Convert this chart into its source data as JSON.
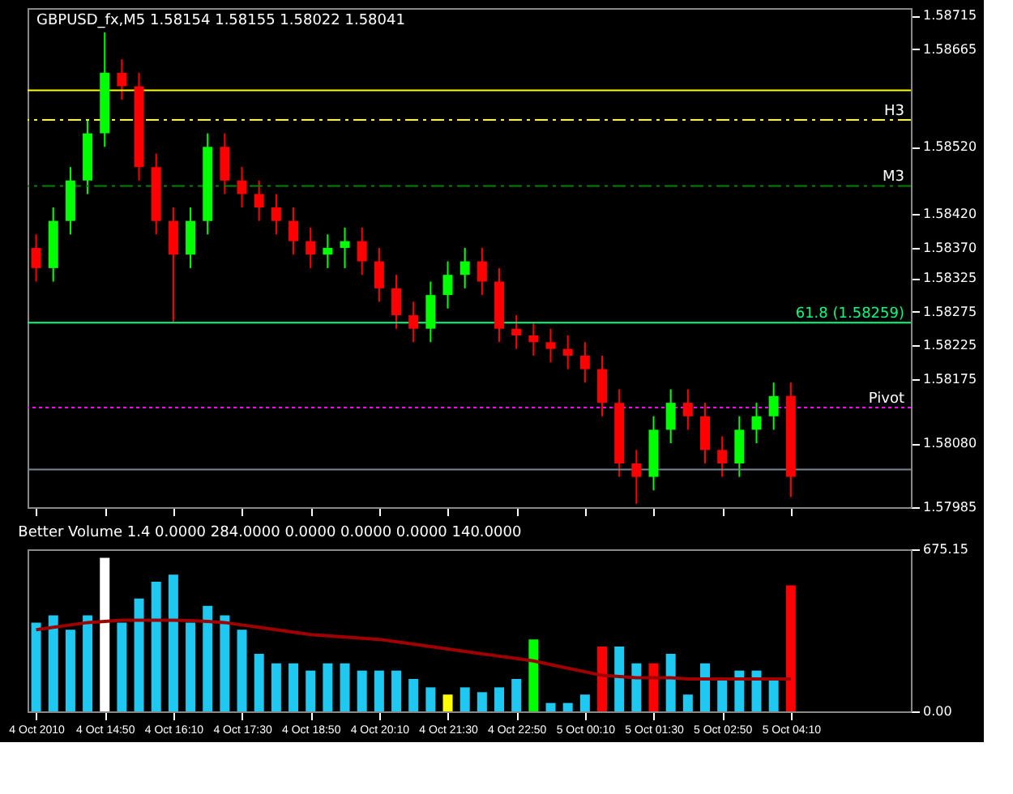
{
  "chart_data": [
    {
      "type": "candlestick",
      "title": "GBPUSD_fx,M5  1.58154 1.58155 1.58022 1.58041",
      "x": [
        "2010-10-04T13:30",
        "2010-10-04T13:50",
        "2010-10-04T14:10",
        "2010-10-04T14:30",
        "2010-10-04T14:50",
        "2010-10-04T15:10",
        "2010-10-04T15:30",
        "2010-10-04T15:50",
        "2010-10-04T16:10",
        "2010-10-04T16:30",
        "2010-10-04T16:50",
        "2010-10-04T17:10",
        "2010-10-04T17:30",
        "2010-10-04T17:50",
        "2010-10-04T18:10",
        "2010-10-04T18:30",
        "2010-10-04T18:50",
        "2010-10-04T19:10",
        "2010-10-04T19:30",
        "2010-10-04T19:50",
        "2010-10-04T20:10",
        "2010-10-04T20:30",
        "2010-10-04T20:50",
        "2010-10-04T21:10",
        "2010-10-04T21:30",
        "2010-10-04T21:50",
        "2010-10-04T22:10",
        "2010-10-04T22:30",
        "2010-10-04T22:50",
        "2010-10-04T23:10",
        "2010-10-04T23:30",
        "2010-10-04T23:50",
        "2010-10-05T00:10",
        "2010-10-05T00:30",
        "2010-10-05T00:50",
        "2010-10-05T01:10",
        "2010-10-05T01:30",
        "2010-10-05T01:50",
        "2010-10-05T02:10",
        "2010-10-05T02:30",
        "2010-10-05T02:50",
        "2010-10-05T03:10",
        "2010-10-05T03:30",
        "2010-10-05T03:50",
        "2010-10-05T04:10"
      ],
      "ohlc": [
        [
          1.5837,
          1.5839,
          1.5832,
          1.5834
        ],
        [
          1.5834,
          1.5843,
          1.5832,
          1.5841
        ],
        [
          1.5841,
          1.5849,
          1.5839,
          1.5847
        ],
        [
          1.5847,
          1.5856,
          1.5845,
          1.5854
        ],
        [
          1.5854,
          1.5869,
          1.5852,
          1.5863
        ],
        [
          1.5863,
          1.5865,
          1.5859,
          1.5861
        ],
        [
          1.5861,
          1.5863,
          1.5847,
          1.5849
        ],
        [
          1.5849,
          1.5851,
          1.5839,
          1.5841
        ],
        [
          1.5841,
          1.5843,
          1.5826,
          1.5836
        ],
        [
          1.5836,
          1.5843,
          1.5834,
          1.5841
        ],
        [
          1.5841,
          1.5854,
          1.5839,
          1.5852
        ],
        [
          1.5852,
          1.5854,
          1.5845,
          1.5847
        ],
        [
          1.5847,
          1.5849,
          1.5843,
          1.5845
        ],
        [
          1.5845,
          1.5847,
          1.5841,
          1.5843
        ],
        [
          1.5843,
          1.5845,
          1.5839,
          1.5841
        ],
        [
          1.5841,
          1.5843,
          1.5836,
          1.5838
        ],
        [
          1.5838,
          1.584,
          1.5834,
          1.5836
        ],
        [
          1.5836,
          1.5839,
          1.5834,
          1.5837
        ],
        [
          1.5837,
          1.584,
          1.5834,
          1.5838
        ],
        [
          1.5838,
          1.584,
          1.5833,
          1.5835
        ],
        [
          1.5835,
          1.5837,
          1.5829,
          1.5831
        ],
        [
          1.5831,
          1.5833,
          1.5825,
          1.5827
        ],
        [
          1.5827,
          1.5829,
          1.5823,
          1.5825
        ],
        [
          1.5825,
          1.5832,
          1.5823,
          1.583
        ],
        [
          1.583,
          1.5835,
          1.5828,
          1.5833
        ],
        [
          1.5833,
          1.5837,
          1.5831,
          1.5835
        ],
        [
          1.5835,
          1.5837,
          1.583,
          1.5832
        ],
        [
          1.5832,
          1.5834,
          1.5823,
          1.5825
        ],
        [
          1.5825,
          1.5827,
          1.5822,
          1.5824
        ],
        [
          1.5824,
          1.5826,
          1.5821,
          1.5823
        ],
        [
          1.5823,
          1.5825,
          1.582,
          1.5822
        ],
        [
          1.5822,
          1.5824,
          1.5819,
          1.5821
        ],
        [
          1.5821,
          1.5823,
          1.5817,
          1.5819
        ],
        [
          1.5819,
          1.5821,
          1.5812,
          1.5814
        ],
        [
          1.5814,
          1.5816,
          1.5803,
          1.5805
        ],
        [
          1.5805,
          1.5807,
          1.5799,
          1.5803
        ],
        [
          1.5803,
          1.5812,
          1.5801,
          1.581
        ],
        [
          1.581,
          1.5816,
          1.5808,
          1.5814
        ],
        [
          1.5814,
          1.5816,
          1.581,
          1.5812
        ],
        [
          1.5812,
          1.5814,
          1.5805,
          1.5807
        ],
        [
          1.5807,
          1.5809,
          1.5803,
          1.5805
        ],
        [
          1.5805,
          1.5812,
          1.5803,
          1.581
        ],
        [
          1.581,
          1.5814,
          1.5808,
          1.5812
        ],
        [
          1.5812,
          1.5817,
          1.581,
          1.5815
        ],
        [
          1.5815,
          1.5817,
          1.58,
          1.5803
        ]
      ],
      "colors": [
        "#ff0000",
        "#00ff00",
        "#00ff00",
        "#00ff00",
        "#00ff00",
        "#ff0000",
        "#ff0000",
        "#ff0000",
        "#ff0000",
        "#00ff00",
        "#00ff00",
        "#ff0000",
        "#ff0000",
        "#ff0000",
        "#ff0000",
        "#ff0000",
        "#ff0000",
        "#00ff00",
        "#00ff00",
        "#ff0000",
        "#ff0000",
        "#ff0000",
        "#ff0000",
        "#00ff00",
        "#00ff00",
        "#00ff00",
        "#ff0000",
        "#ff0000",
        "#ff0000",
        "#ff0000",
        "#ff0000",
        "#ff0000",
        "#ff0000",
        "#ff0000",
        "#ff0000",
        "#ff0000",
        "#00ff00",
        "#00ff00",
        "#ff0000",
        "#ff0000",
        "#ff0000",
        "#00ff00",
        "#00ff00",
        "#00ff00",
        "#ff0000"
      ],
      "xlim": [
        "2010-10-04T13:20",
        "2010-10-05T06:30"
      ],
      "ylim": [
        1.57985,
        1.58726
      ],
      "yticks": [
        1.57985,
        {
          "value": 1.5808,
          "label": "1.58080"
        },
        1.58175,
        1.58225,
        1.58275,
        1.58325,
        {
          "value": 1.5837,
          "label": "1.58370"
        },
        {
          "value": 1.5842,
          "label": "1.58420"
        },
        {
          "value": 1.5852,
          "label": "1.58520"
        },
        1.58665,
        1.58715
      ],
      "tick_labels": "y",
      "xticks": [
        {
          "value": "2010-10-04T13:30",
          "label": null
        },
        {
          "value": "2010-10-04T14:50",
          "label": null
        },
        {
          "value": "2010-10-04T16:10",
          "label": null
        },
        {
          "value": "2010-10-04T17:30",
          "label": null
        },
        {
          "value": "2010-10-04T18:50",
          "label": null
        },
        {
          "value": "2010-10-04T20:10",
          "label": null
        },
        {
          "value": "2010-10-04T21:30",
          "label": null
        },
        {
          "value": "2010-10-04T22:50",
          "label": null
        },
        {
          "value": "2010-10-05T00:10",
          "label": null
        },
        {
          "value": "2010-10-05T01:30",
          "label": null
        },
        {
          "value": "2010-10-05T02:50",
          "label": null
        },
        {
          "value": "2010-10-05T04:10",
          "label": null
        }
      ],
      "grid": false,
      "ref_lines": [
        {
          "axis": "y",
          "value": 1.58604,
          "label": null,
          "color": "#ffff00",
          "line_style": "solid"
        },
        {
          "axis": "y",
          "value": 1.5856,
          "label": "H3",
          "color": "#ffff00",
          "line_style": "dashed"
        },
        {
          "axis": "y",
          "value": 1.58462,
          "label": "M3",
          "color": "#008000",
          "line_style": "dashed"
        },
        {
          "axis": "y",
          "value": 1.58259,
          "label": "61.8 (1.58259)",
          "color": "#00ff7f",
          "line_style": "solid"
        },
        {
          "axis": "y",
          "value": 1.58133,
          "label": "Pivot",
          "color": "#ff00ff",
          "line_style": "dotted"
        },
        {
          "axis": "y",
          "value": 1.58041,
          "label": null,
          "color": "#778899",
          "line_style": "solid"
        }
      ]
    },
    {
      "type": "bar",
      "title": "Better Volume 1.4 0.0000 284.0000 0.0000 0.0000 0.0000 140.0000",
      "x": [
        "2010-10-04T13:30",
        "2010-10-04T13:50",
        "2010-10-04T14:10",
        "2010-10-04T14:30",
        "2010-10-04T14:50",
        "2010-10-04T15:10",
        "2010-10-04T15:30",
        "2010-10-04T15:50",
        "2010-10-04T16:10",
        "2010-10-04T16:30",
        "2010-10-04T16:50",
        "2010-10-04T17:10",
        "2010-10-04T17:30",
        "2010-10-04T17:50",
        "2010-10-04T18:10",
        "2010-10-04T18:30",
        "2010-10-04T18:50",
        "2010-10-04T19:10",
        "2010-10-04T19:30",
        "2010-10-04T19:50",
        "2010-10-04T20:10",
        "2010-10-04T20:30",
        "2010-10-04T20:50",
        "2010-10-04T21:10",
        "2010-10-04T21:30",
        "2010-10-04T21:50",
        "2010-10-04T22:10",
        "2010-10-04T22:30",
        "2010-10-04T22:50",
        "2010-10-04T23:10",
        "2010-10-04T23:30",
        "2010-10-04T23:50",
        "2010-10-05T00:10",
        "2010-10-05T00:30",
        "2010-10-05T00:50",
        "2010-10-05T01:10",
        "2010-10-05T01:30",
        "2010-10-05T01:50",
        "2010-10-05T02:10",
        "2010-10-05T02:30",
        "2010-10-05T02:50",
        "2010-10-05T03:10",
        "2010-10-05T03:30",
        "2010-10-05T03:50",
        "2010-10-05T04:10"
      ],
      "series": [
        {
          "type": "bar",
          "values": [
            370,
            400,
            340,
            400,
            640,
            370,
            470,
            540,
            570,
            370,
            440,
            400,
            340,
            240,
            200,
            200,
            170,
            200,
            200,
            170,
            170,
            170,
            135,
            100,
            70,
            100,
            80,
            100,
            135,
            300,
            35,
            35,
            70,
            270,
            270,
            200,
            200,
            240,
            70,
            200,
            135,
            170,
            170,
            135,
            525
          ],
          "colors": [
            "#1ec8f0",
            "#1ec8f0",
            "#1ec8f0",
            "#1ec8f0",
            "#ffffff",
            "#1ec8f0",
            "#1ec8f0",
            "#1ec8f0",
            "#1ec8f0",
            "#1ec8f0",
            "#1ec8f0",
            "#1ec8f0",
            "#1ec8f0",
            "#1ec8f0",
            "#1ec8f0",
            "#1ec8f0",
            "#1ec8f0",
            "#1ec8f0",
            "#1ec8f0",
            "#1ec8f0",
            "#1ec8f0",
            "#1ec8f0",
            "#1ec8f0",
            "#1ec8f0",
            "#ffff00",
            "#1ec8f0",
            "#1ec8f0",
            "#1ec8f0",
            "#1ec8f0",
            "#00ff00",
            "#1ec8f0",
            "#1ec8f0",
            "#1ec8f0",
            "#ff0000",
            "#1ec8f0",
            "#1ec8f0",
            "#ff0000",
            "#1ec8f0",
            "#1ec8f0",
            "#1ec8f0",
            "#1ec8f0",
            "#1ec8f0",
            "#1ec8f0",
            "#1ec8f0",
            "#ff0000"
          ]
        },
        {
          "type": "line",
          "color": "#a00000",
          "values": [
            340,
            350,
            360,
            370,
            375,
            380,
            380,
            380,
            380,
            378,
            375,
            370,
            360,
            350,
            340,
            330,
            320,
            315,
            310,
            305,
            300,
            290,
            280,
            270,
            260,
            250,
            240,
            230,
            220,
            210,
            195,
            180,
            165,
            150,
            145,
            140,
            140,
            140,
            135,
            135,
            135,
            135,
            135,
            135,
            135
          ]
        }
      ],
      "xlim": [
        "2010-10-04T13:20",
        "2010-10-05T06:30"
      ],
      "xticks": [
        {
          "value": "2010-10-04T13:30",
          "label": "4 Oct 2010"
        },
        {
          "value": "2010-10-04T14:50",
          "label": "4 Oct 14:50"
        },
        {
          "value": "2010-10-04T16:10",
          "label": "4 Oct 16:10"
        },
        {
          "value": "2010-10-04T17:30",
          "label": "4 Oct 17:30"
        },
        {
          "value": "2010-10-04T18:50",
          "label": "4 Oct 18:50"
        },
        {
          "value": "2010-10-04T20:10",
          "label": "4 Oct 20:10"
        },
        {
          "value": "2010-10-04T21:30",
          "label": "4 Oct 21:30"
        },
        {
          "value": "2010-10-04T22:50",
          "label": "4 Oct 22:50"
        },
        {
          "value": "2010-10-05T00:10",
          "label": "5 Oct 00:10"
        },
        {
          "value": "2010-10-05T01:30",
          "label": "5 Oct 01:30"
        },
        {
          "value": "2010-10-05T02:50",
          "label": "5 Oct 02:50"
        },
        {
          "value": "2010-10-05T04:10",
          "label": "5 Oct 04:10"
        }
      ],
      "ylim": [
        0,
        675.15
      ],
      "yticks": [
        {
          "value": 0,
          "label": "0.00"
        },
        675.15
      ],
      "grid": false
    }
  ]
}
